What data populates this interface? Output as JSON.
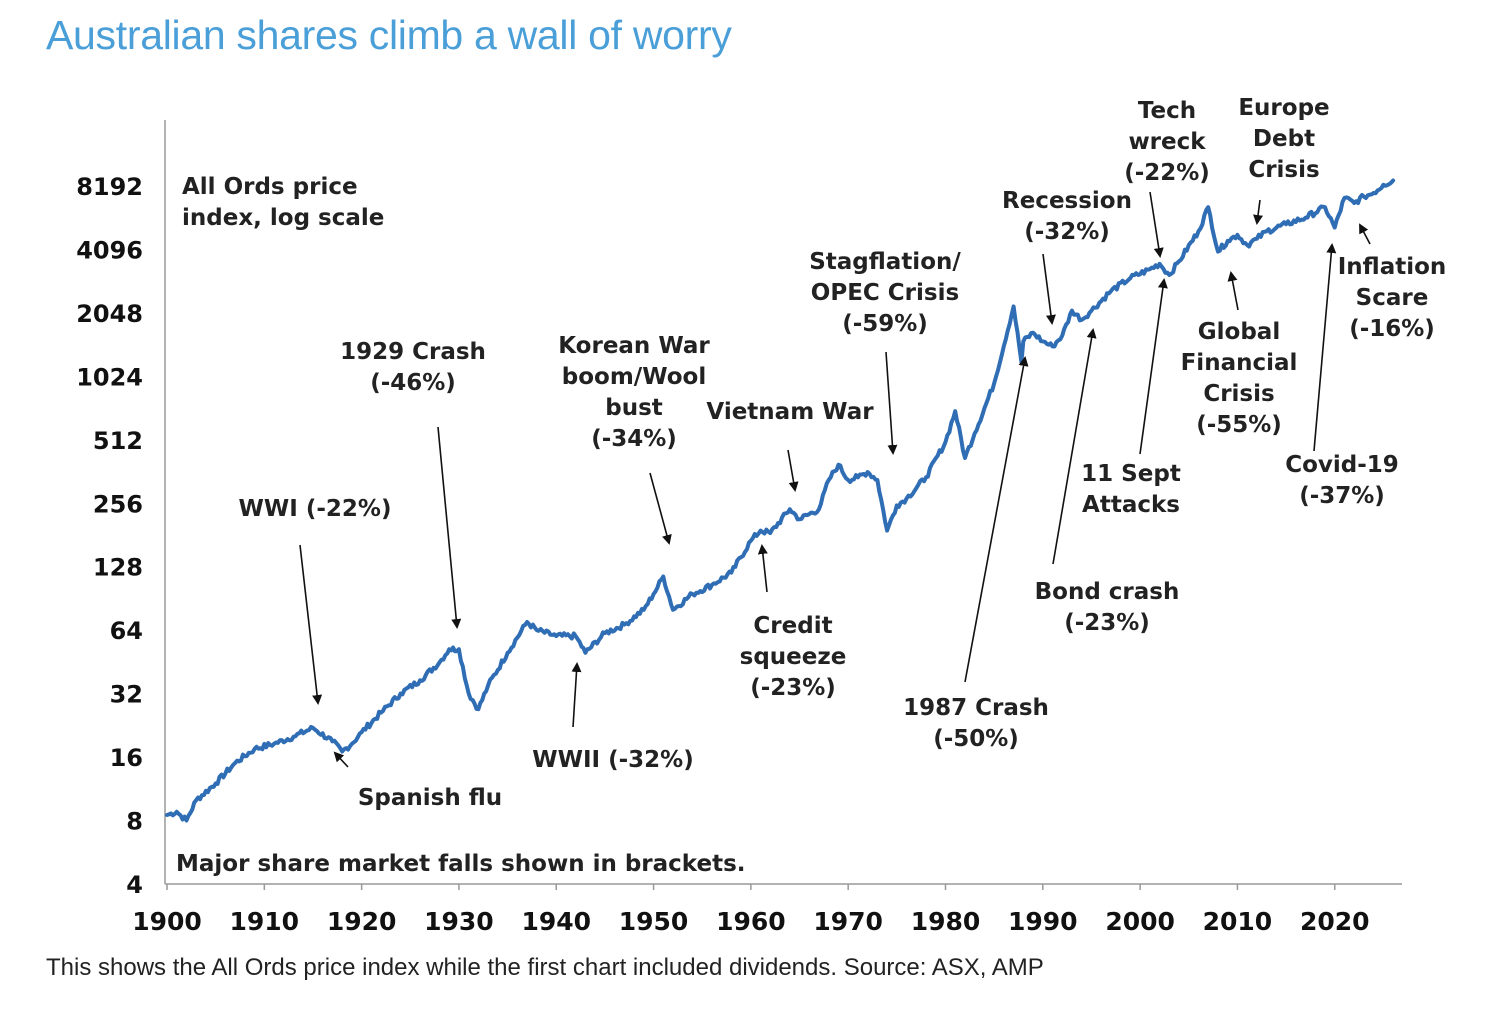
{
  "page": {
    "title": "Australian shares climb a wall of worry",
    "caption": "This shows the All Ords price index while the first chart included dividends. Source: ASX, AMP"
  },
  "colors": {
    "title": "#4a9fd8",
    "series": "#2f6db5",
    "text": "#222222"
  },
  "chart_data": {
    "type": "line",
    "scale": "log2",
    "ylim": [
      4,
      10500
    ],
    "xlim": [
      1900,
      2026.5
    ],
    "y_ticks": [
      4,
      8,
      16,
      32,
      64,
      128,
      256,
      512,
      1024,
      2048,
      4096,
      8192
    ],
    "x_ticks": [
      1900,
      1910,
      1920,
      1930,
      1940,
      1950,
      1960,
      1970,
      1980,
      1990,
      2000,
      2010,
      2020
    ],
    "axis_note": [
      "All Ords price",
      "index, log scale"
    ],
    "footnote": "Major share market falls shown in brackets.",
    "series": [
      {
        "x": [
          1900,
          1901,
          1902,
          1903,
          1905,
          1907,
          1909,
          1911,
          1913,
          1915,
          1917,
          1918,
          1919,
          1920,
          1922,
          1924,
          1926,
          1928,
          1929,
          1930,
          1931,
          1932,
          1933,
          1935,
          1937,
          1938,
          1940,
          1942,
          1943,
          1945,
          1947,
          1949,
          1950,
          1951,
          1952,
          1954,
          1956,
          1958,
          1960,
          1961,
          1962,
          1964,
          1965,
          1967,
          1968,
          1969,
          1970,
          1971,
          1972,
          1973,
          1974,
          1975,
          1976,
          1978,
          1980,
          1981,
          1982,
          1983,
          1985,
          1987,
          1987.8,
          1988,
          1989,
          1990,
          1991,
          1992,
          1993,
          1994,
          1995,
          1997,
          1999,
          2001,
          2002,
          2003,
          2004,
          2006,
          2007,
          2008,
          2009,
          2010,
          2011,
          2012,
          2013,
          2015,
          2017,
          2019,
          2020,
          2021,
          2022,
          2023,
          2024,
          2025,
          2026
        ],
        "y": [
          8.5,
          8.8,
          8,
          10,
          12,
          15,
          17.5,
          18.5,
          20,
          22,
          19,
          17,
          18.5,
          21,
          26,
          32,
          37,
          45,
          52,
          52,
          32,
          27,
          35,
          50,
          70,
          64,
          60,
          60,
          50,
          62,
          68,
          80,
          95,
          115,
          80,
          95,
          105,
          120,
          170,
          190,
          185,
          240,
          215,
          240,
          330,
          390,
          330,
          340,
          360,
          330,
          190,
          250,
          270,
          340,
          500,
          700,
          420,
          550,
          950,
          2200,
          1200,
          1500,
          1650,
          1500,
          1420,
          1600,
          2100,
          1900,
          2100,
          2600,
          3000,
          3300,
          3500,
          3100,
          3600,
          5000,
          6500,
          4000,
          4500,
          4800,
          4300,
          4600,
          5000,
          5400,
          5800,
          6500,
          5200,
          7200,
          6800,
          7300,
          7600,
          8300,
          8700
        ]
      }
    ],
    "annotations": [
      {
        "lines": [
          "WWI (-22%)"
        ]
      },
      {
        "lines": [
          "Spanish flu"
        ]
      },
      {
        "lines": [
          "1929 Crash",
          "(-46%)"
        ]
      },
      {
        "lines": [
          "WWII (-32%)"
        ]
      },
      {
        "lines": [
          "Korean War",
          "boom/Wool",
          "bust",
          "(-34%)"
        ]
      },
      {
        "lines": [
          "Credit",
          "squeeze",
          "(-23%)"
        ]
      },
      {
        "lines": [
          "Vietnam War"
        ]
      },
      {
        "lines": [
          "Stagflation/",
          "OPEC Crisis",
          "(-59%)"
        ]
      },
      {
        "lines": [
          "1987 Crash",
          "(-50%)"
        ]
      },
      {
        "lines": [
          "Recession",
          "(-32%)"
        ]
      },
      {
        "lines": [
          "Bond crash",
          "(-23%)"
        ]
      },
      {
        "lines": [
          "11 Sept",
          "Attacks"
        ]
      },
      {
        "lines": [
          "Tech",
          "wreck",
          "(-22%)"
        ]
      },
      {
        "lines": [
          "Europe",
          "Debt",
          "Crisis"
        ]
      },
      {
        "lines": [
          "Global",
          "Financial",
          "Crisis",
          "(-55%)"
        ]
      },
      {
        "lines": [
          "Covid-19",
          "(-37%)"
        ]
      },
      {
        "lines": [
          "Inflation",
          "Scare",
          "(-16%)"
        ]
      }
    ]
  }
}
